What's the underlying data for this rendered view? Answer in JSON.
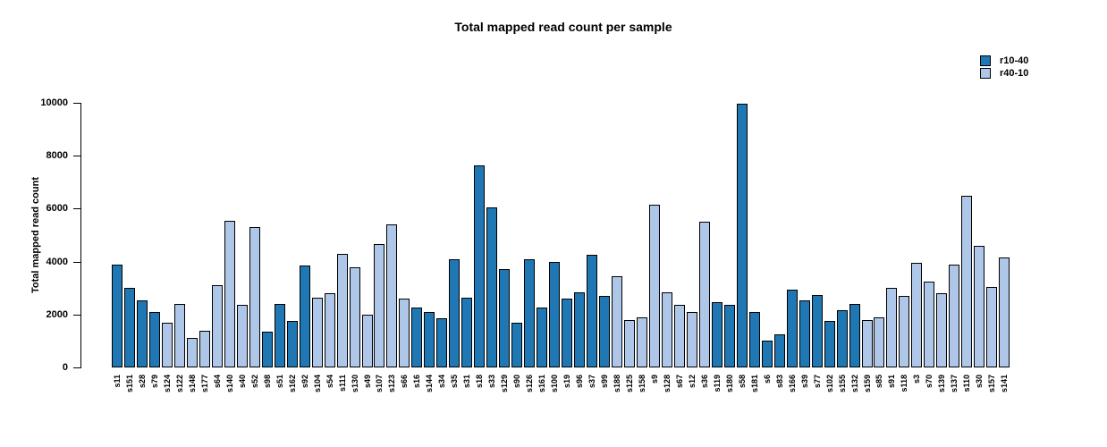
{
  "title": "Total mapped read count per sample",
  "ylabel": "Total mapped read count",
  "legend": {
    "entries": [
      {
        "label": "r10-40",
        "color": "#1f77b4"
      },
      {
        "label": "r40-10",
        "color": "#aec7e8"
      }
    ]
  },
  "chart_data": {
    "type": "bar",
    "title": "Total mapped read count per sample",
    "xlabel": "",
    "ylabel": "Total mapped read count",
    "ylim": [
      0,
      10000
    ],
    "yticks": [
      0,
      2000,
      4000,
      6000,
      8000,
      10000
    ],
    "grid": false,
    "legend_position": "top-right",
    "bar_border_color": "#000000",
    "series_colors": {
      "r10-40": "#1f77b4",
      "r40-10": "#aec7e8"
    },
    "categories": [
      "s11",
      "s151",
      "s28",
      "s79",
      "s124",
      "s122",
      "s148",
      "s177",
      "s64",
      "s140",
      "s40",
      "s52",
      "s98",
      "s51",
      "s162",
      "s92",
      "s104",
      "s54",
      "s111",
      "s130",
      "s49",
      "s107",
      "s123",
      "s66",
      "s16",
      "s144",
      "s34",
      "s35",
      "s31",
      "s18",
      "s33",
      "s129",
      "s90",
      "s126",
      "s161",
      "s100",
      "s19",
      "s96",
      "s37",
      "s99",
      "s188",
      "s125",
      "s158",
      "s9",
      "s128",
      "s67",
      "s12",
      "s36",
      "s119",
      "s180",
      "s58",
      "s181",
      "s6",
      "s83",
      "s166",
      "s39",
      "s77",
      "s102",
      "s155",
      "s132",
      "s159",
      "s85",
      "s91",
      "s118",
      "s3",
      "s70",
      "s139",
      "s137",
      "s110",
      "s30",
      "s157",
      "s141"
    ],
    "values": [
      3900,
      3000,
      2550,
      2100,
      1700,
      2400,
      1100,
      1400,
      3100,
      5550,
      2350,
      5300,
      1350,
      2400,
      1750,
      3850,
      2650,
      2800,
      4300,
      3800,
      2000,
      4650,
      5400,
      2600,
      2250,
      2100,
      1850,
      4100,
      2650,
      7650,
      6050,
      3700,
      1700,
      4100,
      2250,
      4000,
      2600,
      2850,
      4250,
      2700,
      3450,
      1800,
      1900,
      6150,
      2850,
      2350,
      2100,
      5500,
      2450,
      2350,
      9950,
      2100,
      1000,
      1250,
      2950,
      2550,
      2750,
      1750,
      2150,
      2400,
      1800,
      1900,
      3000,
      2700,
      3950,
      3250,
      2800,
      3900,
      6500,
      4600,
      3050,
      4150
    ],
    "groups": [
      "r10-40",
      "r10-40",
      "r10-40",
      "r10-40",
      "r40-10",
      "r40-10",
      "r40-10",
      "r40-10",
      "r40-10",
      "r40-10",
      "r40-10",
      "r40-10",
      "r10-40",
      "r10-40",
      "r10-40",
      "r10-40",
      "r40-10",
      "r40-10",
      "r40-10",
      "r40-10",
      "r40-10",
      "r40-10",
      "r40-10",
      "r40-10",
      "r10-40",
      "r10-40",
      "r10-40",
      "r10-40",
      "r10-40",
      "r10-40",
      "r10-40",
      "r10-40",
      "r10-40",
      "r10-40",
      "r10-40",
      "r10-40",
      "r10-40",
      "r10-40",
      "r10-40",
      "r10-40",
      "r40-10",
      "r40-10",
      "r40-10",
      "r40-10",
      "r40-10",
      "r40-10",
      "r40-10",
      "r40-10",
      "r10-40",
      "r10-40",
      "r10-40",
      "r10-40",
      "r10-40",
      "r10-40",
      "r10-40",
      "r10-40",
      "r10-40",
      "r10-40",
      "r10-40",
      "r10-40",
      "r40-10",
      "r40-10",
      "r40-10",
      "r40-10",
      "r40-10",
      "r40-10",
      "r40-10",
      "r40-10",
      "r40-10",
      "r40-10",
      "r40-10",
      "r40-10"
    ]
  }
}
